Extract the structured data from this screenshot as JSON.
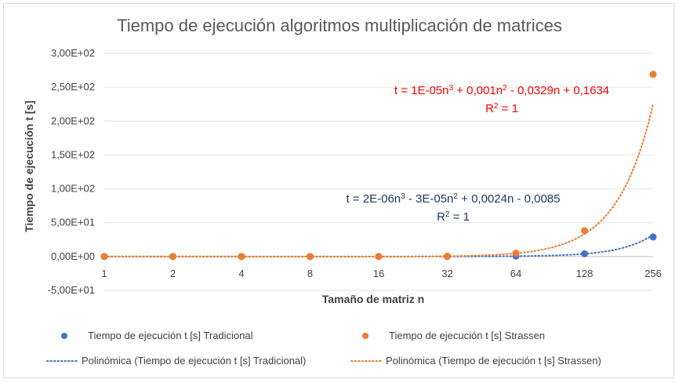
{
  "chart_data": {
    "type": "scatter",
    "title": "Tiempo de ejecución algoritmos multiplicación de matrices",
    "xlabel": "Tamaño de matriz n",
    "ylabel": "Tiempo de ejecución t [s]",
    "x_scale": "log2",
    "categories": [
      "1",
      "2",
      "4",
      "8",
      "16",
      "32",
      "64",
      "128",
      "256"
    ],
    "x": [
      1,
      2,
      4,
      8,
      16,
      32,
      64,
      128,
      256
    ],
    "ylim": [
      -50,
      300
    ],
    "yticks": [
      -50,
      0,
      50,
      100,
      150,
      200,
      250,
      300
    ],
    "ytick_labels": [
      "-5,00E+01",
      "0,00E+00",
      "5,00E+01",
      "1,00E+02",
      "1,50E+02",
      "2,00E+02",
      "2,50E+02",
      "3,00E+02"
    ],
    "grid": true,
    "legend_position": "bottom",
    "series": [
      {
        "name": "Tiempo de ejecución t [s] Tradicional",
        "color": "#4472c4",
        "values": [
          0,
          0,
          0,
          0,
          0,
          0.1,
          0.6,
          4.1,
          28.9
        ],
        "trendline": {
          "name": "Polinómica (Tiempo de ejecución t [s] Tradicional)",
          "coefficients": [
            -0.0085,
            0.0024,
            -3e-05,
            2e-06
          ],
          "equation_main": "t = 2E-06n",
          "equation_parts": [
            "t = 2E-06n",
            "3",
            " - 3E-05n",
            "2",
            " + 0,0024n - 0,0085"
          ],
          "r2_label": "R",
          "r2_sup": "2",
          "r2_value": " = 1",
          "text_color": "#1f3864"
        }
      },
      {
        "name": "Tiempo de ejecución t [s] Strassen",
        "color": "#ed7d31",
        "values": [
          0,
          0,
          0,
          0,
          0.1,
          0.5,
          4.9,
          38.1,
          269.1
        ],
        "trendline": {
          "name": "Polinómica (Tiempo de ejecución t [s] Strassen)",
          "coefficients": [
            0.1634,
            -0.0329,
            0.001,
            1e-05
          ],
          "equation_parts": [
            "t = 1E-05n",
            "3",
            " + 0,001n",
            "2",
            " - 0,0329n + 0,1634"
          ],
          "r2_label": "R",
          "r2_sup": "2",
          "r2_value": " = 1",
          "text_color": "#ff0000"
        }
      }
    ]
  }
}
